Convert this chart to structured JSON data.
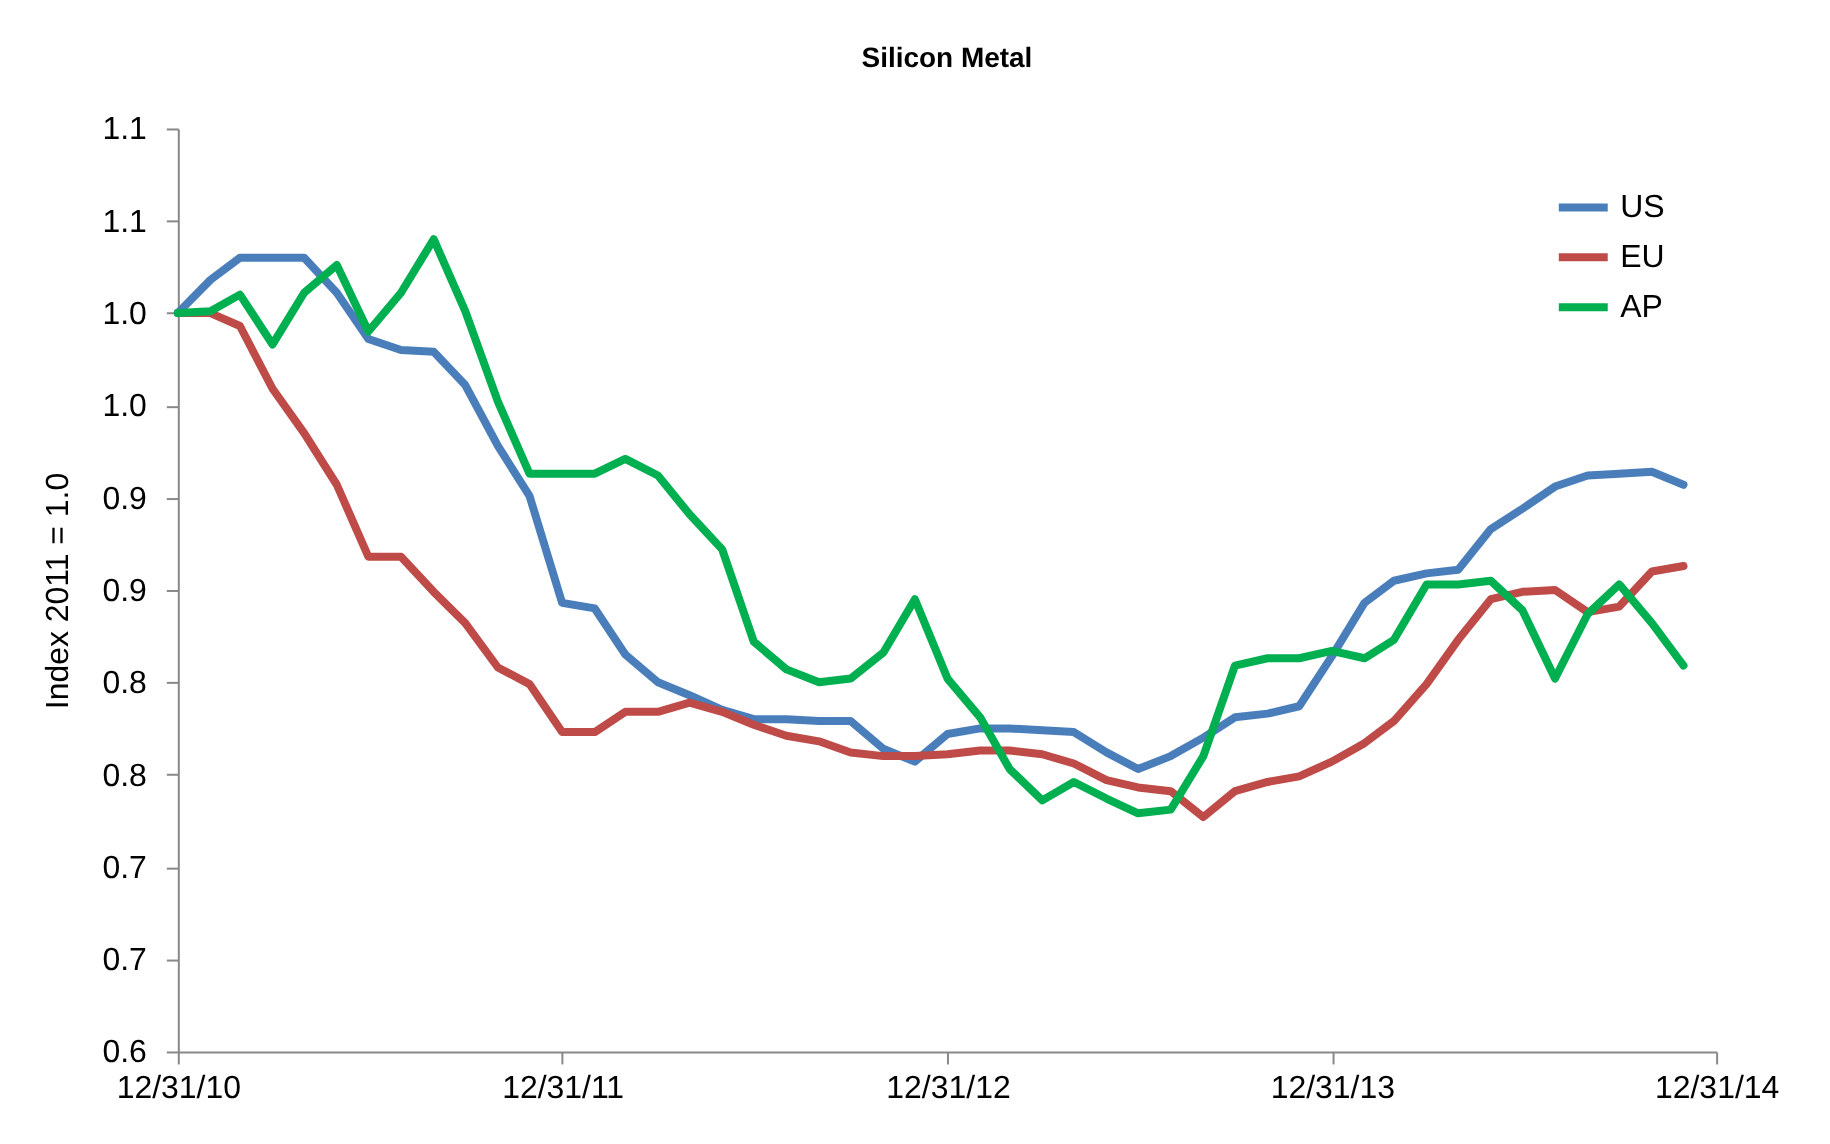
{
  "chart_data": {
    "type": "line",
    "title": "Silicon Metal",
    "ylabel": "Index 2011 = 1.0",
    "x": [
      "2010-12-31",
      "2011-01-31",
      "2011-02-28",
      "2011-03-31",
      "2011-04-30",
      "2011-05-31",
      "2011-06-30",
      "2011-07-31",
      "2011-08-31",
      "2011-09-30",
      "2011-10-31",
      "2011-11-30",
      "2011-12-31",
      "2012-01-31",
      "2012-02-29",
      "2012-03-31",
      "2012-04-30",
      "2012-05-31",
      "2012-06-30",
      "2012-07-31",
      "2012-08-31",
      "2012-09-30",
      "2012-10-31",
      "2012-11-30",
      "2012-12-31",
      "2013-01-31",
      "2013-02-28",
      "2013-03-31",
      "2013-04-30",
      "2013-05-31",
      "2013-06-30",
      "2013-07-31",
      "2013-08-31",
      "2013-09-30",
      "2013-10-31",
      "2013-11-30",
      "2013-12-31",
      "2014-01-31",
      "2014-02-28",
      "2014-03-31",
      "2014-04-30",
      "2014-05-31",
      "2014-06-30",
      "2014-07-31",
      "2014-08-31",
      "2014-09-30",
      "2014-10-31",
      "2014-11-30"
    ],
    "series": [
      {
        "name": "US",
        "color": "#4a7ebb",
        "values": [
          1.0,
          1.018,
          1.03,
          1.03,
          1.03,
          1.011,
          0.986,
          0.98,
          0.979,
          0.961,
          0.928,
          0.901,
          0.843,
          0.84,
          0.815,
          0.8,
          0.793,
          0.785,
          0.78,
          0.78,
          0.779,
          0.779,
          0.764,
          0.757,
          0.772,
          0.775,
          0.775,
          0.774,
          0.773,
          0.762,
          0.753,
          0.76,
          0.77,
          0.781,
          0.783,
          0.787,
          0.814,
          0.843,
          0.855,
          0.859,
          0.861,
          0.883,
          0.894,
          0.906,
          0.912,
          0.913,
          0.914,
          0.907
        ]
      },
      {
        "name": "EU",
        "color": "#be4b48",
        "values": [
          1.0,
          1.0,
          0.993,
          0.959,
          0.935,
          0.907,
          0.868,
          0.868,
          0.849,
          0.832,
          0.808,
          0.799,
          0.773,
          0.773,
          0.784,
          0.784,
          0.789,
          0.784,
          0.777,
          0.771,
          0.768,
          0.762,
          0.76,
          0.76,
          0.761,
          0.763,
          0.763,
          0.761,
          0.756,
          0.747,
          0.743,
          0.741,
          0.727,
          0.741,
          0.746,
          0.749,
          0.757,
          0.767,
          0.779,
          0.799,
          0.823,
          0.845,
          0.849,
          0.85,
          0.838,
          0.841,
          0.86,
          0.863
        ]
      },
      {
        "name": "AP",
        "color": "#00b050",
        "values": [
          1.0,
          1.001,
          1.01,
          0.983,
          1.011,
          1.026,
          0.99,
          1.011,
          1.04,
          1.001,
          0.952,
          0.913,
          0.913,
          0.913,
          0.921,
          0.912,
          0.891,
          0.872,
          0.822,
          0.807,
          0.8,
          0.802,
          0.816,
          0.845,
          0.802,
          0.781,
          0.753,
          0.736,
          0.746,
          0.737,
          0.729,
          0.731,
          0.76,
          0.809,
          0.813,
          0.813,
          0.817,
          0.813,
          0.823,
          0.853,
          0.853,
          0.855,
          0.839,
          0.802,
          0.837,
          0.853,
          0.832,
          0.809
        ]
      }
    ],
    "xlim": [
      "2010-12-31",
      "2014-12-31"
    ],
    "xticks": [
      {
        "value": "2010-12-31",
        "label": "12/31/10"
      },
      {
        "value": "2011-12-31",
        "label": "12/31/11"
      },
      {
        "value": "2012-12-31",
        "label": "12/31/12"
      },
      {
        "value": "2013-12-31",
        "label": "12/31/13"
      },
      {
        "value": "2014-12-31",
        "label": "12/31/14"
      }
    ],
    "ylim": [
      0.6,
      1.1
    ],
    "yticks": [
      {
        "value": 0.6,
        "label": "0.6"
      },
      {
        "value": 0.65,
        "label": "0.7"
      },
      {
        "value": 0.7,
        "label": "0.7"
      },
      {
        "value": 0.75,
        "label": "0.8"
      },
      {
        "value": 0.8,
        "label": "0.8"
      },
      {
        "value": 0.85,
        "label": "0.9"
      },
      {
        "value": 0.9,
        "label": "0.9"
      },
      {
        "value": 0.95,
        "label": "1.0"
      },
      {
        "value": 1.0,
        "label": "1.0"
      },
      {
        "value": 1.05,
        "label": "1.1"
      },
      {
        "value": 1.1,
        "label": "1.1"
      }
    ],
    "grid": false,
    "legend": "top right",
    "marker": "none",
    "line_style": "solid"
  }
}
